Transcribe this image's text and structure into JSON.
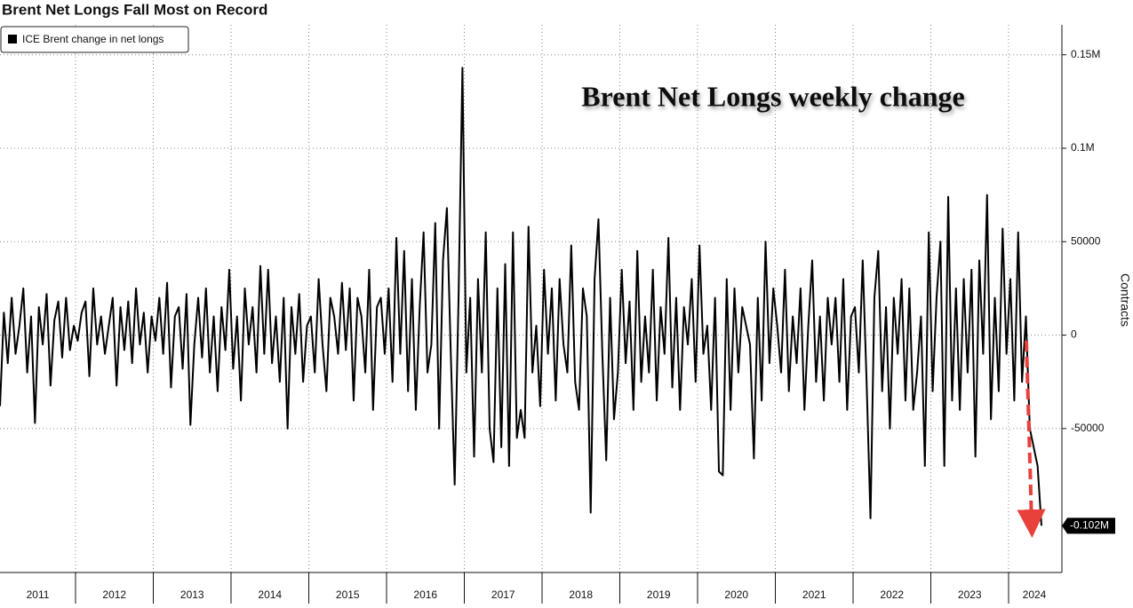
{
  "chart_data": {
    "type": "line",
    "title": "Brent Net Longs Fall Most on Record",
    "annotation": "Brent Net Longs weekly change",
    "y_label": "Contracts",
    "x_axis": {
      "labels": [
        "2011",
        "2012",
        "2013",
        "2014",
        "2015",
        "2016",
        "2017",
        "2018",
        "2019",
        "2020",
        "2021",
        "2022",
        "2023",
        "2024"
      ]
    },
    "ylim": [
      -127000,
      166000
    ],
    "yticks": [
      {
        "value": 150000,
        "label": "0.15M"
      },
      {
        "value": 100000,
        "label": "0.1M"
      },
      50000,
      0,
      -50000
    ],
    "grid": true,
    "last_value_label": "-0.102M",
    "series": [
      {
        "name": "ICE Brent change in net longs",
        "color": "#000000",
        "values": [
          -38000,
          12000,
          -15000,
          20000,
          -10000,
          5000,
          25000,
          -20000,
          10000,
          -47000,
          15000,
          -5000,
          22000,
          -27000,
          8000,
          18000,
          -12000,
          20000,
          -8000,
          5000,
          -3000,
          12000,
          18000,
          -22000,
          25000,
          -5000,
          10000,
          -10000,
          5000,
          20000,
          -27000,
          15000,
          -8000,
          18000,
          -15000,
          25000,
          -5000,
          12000,
          -20000,
          10000,
          -3000,
          20000,
          -10000,
          28000,
          -28000,
          10000,
          15000,
          -18000,
          22000,
          -48000,
          -5000,
          20000,
          -12000,
          25000,
          -20000,
          10000,
          -30000,
          15000,
          -8000,
          35000,
          -18000,
          10000,
          -35000,
          25000,
          -5000,
          15000,
          -20000,
          37000,
          -10000,
          35000,
          -15000,
          10000,
          -25000,
          20000,
          -50000,
          15000,
          -10000,
          22000,
          -25000,
          5000,
          10000,
          -20000,
          30000,
          -5000,
          -30000,
          20000,
          10000,
          -10000,
          28000,
          -8000,
          25000,
          -35000,
          20000,
          10000,
          -20000,
          35000,
          -40000,
          15000,
          20000,
          -10000,
          25000,
          -25000,
          52000,
          -10000,
          45000,
          -30000,
          30000,
          -40000,
          15000,
          55000,
          -20000,
          -5000,
          60000,
          -50000,
          40000,
          68000,
          -10000,
          -80000,
          20000,
          143000,
          -20000,
          20000,
          -65000,
          30000,
          -20000,
          55000,
          -50000,
          -68000,
          25000,
          -60000,
          38000,
          -70000,
          55000,
          -55000,
          -40000,
          -55000,
          58000,
          -20000,
          5000,
          -38000,
          35000,
          -10000,
          25000,
          -35000,
          30000,
          -5000,
          -20000,
          48000,
          -25000,
          -40000,
          25000,
          10000,
          -95000,
          30000,
          62000,
          -10000,
          -67000,
          20000,
          -45000,
          -20000,
          35000,
          -15000,
          18000,
          -40000,
          45000,
          -25000,
          10000,
          -20000,
          35000,
          -35000,
          15000,
          -10000,
          52000,
          -28000,
          20000,
          -40000,
          15000,
          -5000,
          30000,
          -25000,
          48000,
          -10000,
          5000,
          -40000,
          20000,
          -73000,
          -75000,
          30000,
          -40000,
          25000,
          -20000,
          15000,
          5000,
          -5000,
          -66000,
          20000,
          -35000,
          50000,
          -15000,
          25000,
          5000,
          -20000,
          35000,
          -30000,
          10000,
          -15000,
          25000,
          -40000,
          5000,
          40000,
          -25000,
          10000,
          -35000,
          20000,
          -5000,
          20000,
          -25000,
          30000,
          -40000,
          10000,
          15000,
          -20000,
          40000,
          -25000,
          -98000,
          20000,
          45000,
          -30000,
          15000,
          -50000,
          20000,
          -10000,
          30000,
          -35000,
          25000,
          -40000,
          -20000,
          10000,
          -70000,
          55000,
          -30000,
          20000,
          50000,
          -70000,
          74000,
          -35000,
          25000,
          -40000,
          30000,
          -20000,
          35000,
          -65000,
          40000,
          -10000,
          75000,
          -45000,
          20000,
          -30000,
          57000,
          -10000,
          30000,
          -35000,
          55000,
          -25000,
          10000,
          -50000,
          -60000,
          -70000,
          -102000
        ]
      }
    ]
  }
}
